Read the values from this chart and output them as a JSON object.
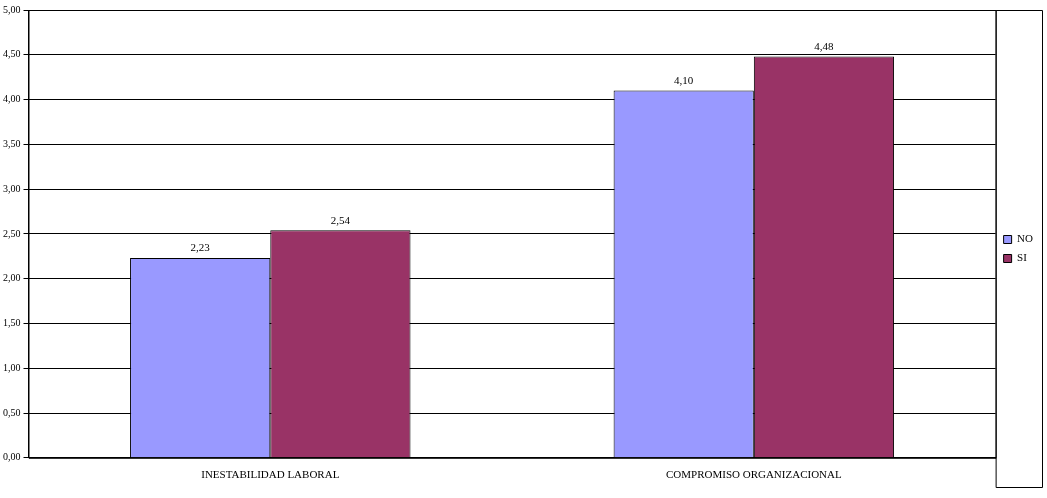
{
  "chart_data": {
    "type": "bar",
    "categories": [
      "INESTABILIDAD LABORAL",
      "COMPROMISO ORGANIZACIONAL"
    ],
    "series": [
      {
        "name": "NO",
        "color": "#9999ff",
        "values": [
          2.23,
          4.1
        ],
        "value_labels": [
          "2,23",
          "4,10"
        ]
      },
      {
        "name": "SI",
        "color": "#993366",
        "values": [
          2.54,
          4.48
        ],
        "value_labels": [
          "2,54",
          "4,48"
        ]
      }
    ],
    "ylim": [
      0,
      5
    ],
    "yticks": [
      {
        "value": 0,
        "label": "0,00"
      },
      {
        "value": 0.5,
        "label": "0,50"
      },
      {
        "value": 1,
        "label": "1,00"
      },
      {
        "value": 1.5,
        "label": "1,50"
      },
      {
        "value": 2,
        "label": "2,00"
      },
      {
        "value": 2.5,
        "label": "2,50"
      },
      {
        "value": 3,
        "label": "3,00"
      },
      {
        "value": 3.5,
        "label": "3,50"
      },
      {
        "value": 4,
        "label": "4,00"
      },
      {
        "value": 4.5,
        "label": "4,50"
      },
      {
        "value": 5,
        "label": "5,00"
      }
    ],
    "grid": "y",
    "legend": "right"
  }
}
